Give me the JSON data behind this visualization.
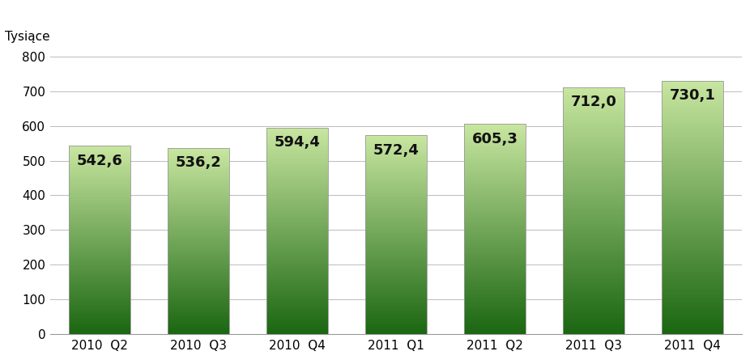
{
  "categories": [
    "2010  Q2",
    "2010  Q3",
    "2010  Q4",
    "2011  Q1",
    "2011  Q2",
    "2011  Q3",
    "2011  Q4"
  ],
  "values": [
    542.6,
    536.2,
    594.4,
    572.4,
    605.3,
    712.0,
    730.1
  ],
  "labels": [
    "542,6",
    "536,2",
    "594,4",
    "572,4",
    "605,3",
    "712,0",
    "730,1"
  ],
  "ylabel": "Tysiące",
  "ylim": [
    0,
    800
  ],
  "yticks": [
    0,
    100,
    200,
    300,
    400,
    500,
    600,
    700,
    800
  ],
  "bar_color_top": "#c8e6a0",
  "bar_color_bottom": "#1a6611",
  "bar_edge_color": "#999999",
  "background_color": "#ffffff",
  "plot_bg_color": "#ffffff",
  "label_fontsize": 13,
  "ylabel_fontsize": 11,
  "tick_fontsize": 11,
  "label_color": "#111111",
  "bar_width": 0.62
}
